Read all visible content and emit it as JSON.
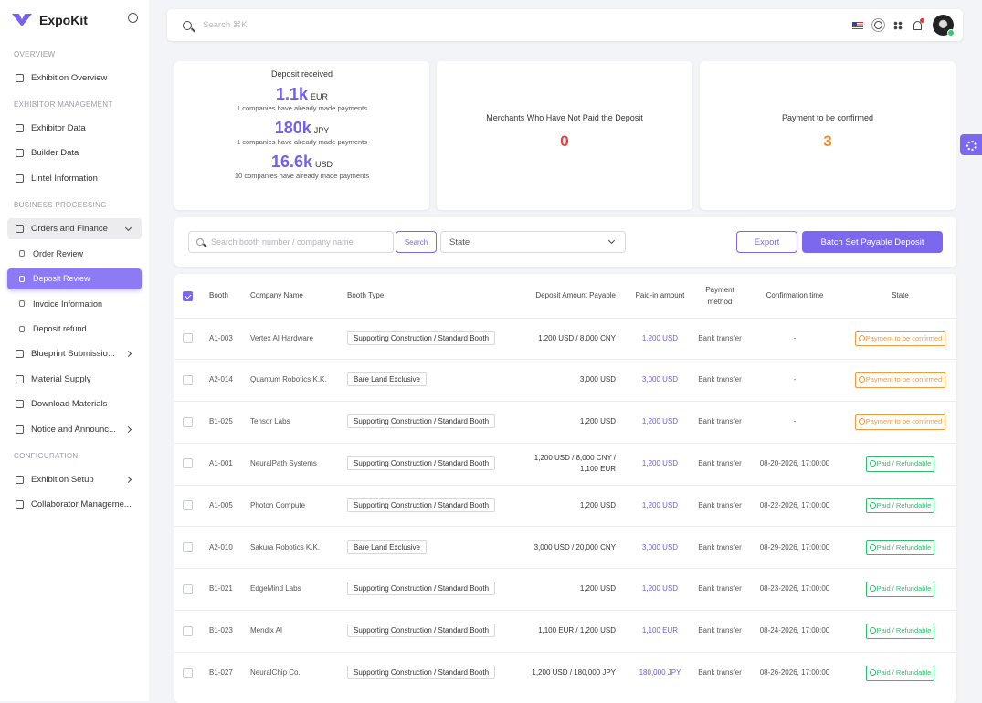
{
  "sidebar": {
    "brand": "ExpoKit",
    "sections": [
      {
        "title": "OVERVIEW",
        "items": [
          {
            "label": "Exhibition Overview"
          }
        ]
      },
      {
        "title": "EXHIBITOR MANAGEMENT",
        "items": [
          {
            "label": "Exhibitor Data"
          },
          {
            "label": "Builder Data"
          },
          {
            "label": "Lintel Information"
          }
        ]
      },
      {
        "title": "BUSINESS PROCESSING",
        "items": [
          {
            "label": "Orders and Finance",
            "expanded": true,
            "children": [
              {
                "label": "Order Review"
              },
              {
                "label": "Deposit Review",
                "active": true
              },
              {
                "label": "Invoice Information"
              },
              {
                "label": "Deposit refund"
              }
            ]
          },
          {
            "label": "Blueprint Submissio...",
            "has_submenu": true
          },
          {
            "label": "Material Supply"
          },
          {
            "label": "Download Materials"
          },
          {
            "label": "Notice and Announc...",
            "has_submenu": true
          }
        ]
      },
      {
        "title": "CONFIGURATION",
        "items": [
          {
            "label": "Exhibition Setup",
            "has_submenu": true
          },
          {
            "label": "Collaborator Manageme..."
          }
        ]
      }
    ]
  },
  "topbar": {
    "search_placeholder": "Search ⌘K"
  },
  "summary": {
    "deposit_received": {
      "title": "Deposit received",
      "entries": [
        {
          "amount": "1.1k",
          "unit": "EUR",
          "note": "1 companies have already made payments"
        },
        {
          "amount": "180k",
          "unit": "JPY",
          "note": "1 companies have already made payments"
        },
        {
          "amount": "16.6k",
          "unit": "USD",
          "note": "10 companies have already made payments"
        }
      ]
    },
    "unpaid": {
      "title": "Merchants Who Have Not Paid the Deposit",
      "value": 0,
      "color": "#e5403a"
    },
    "to_confirm": {
      "title": "Payment to be confirmed",
      "value": 3,
      "color": "#f28c28"
    }
  },
  "toolbar": {
    "search_placeholder": "Search booth number / company name",
    "search_button": "Search",
    "state_placeholder": "State",
    "export": "Export",
    "batch": "Batch Set Payable Deposit"
  },
  "table": {
    "header_checked": true,
    "columns": [
      "Booth",
      "Company Name",
      "Booth Type",
      "Deposit Amount Payable",
      "Paid-in amount",
      "Payment method",
      "Confirmation time",
      "State"
    ],
    "rows": [
      {
        "booth": "A1-003",
        "company": "Vertex AI Hardware",
        "booth_type": "Supporting Construction / Standard Booth",
        "deposit": "1,200 USD / 8,000 CNY",
        "paid": "1,200 USD",
        "method": "Bank transfer",
        "confirmed_at": "-",
        "state": "Payment to be confirmed",
        "state_tone": "warning"
      },
      {
        "booth": "A2-014",
        "company": "Quantum Robotics K.K.",
        "booth_type": "Bare Land Exclusive",
        "deposit": "3,000 USD",
        "paid": "3,000 USD",
        "method": "Bank transfer",
        "confirmed_at": "-",
        "state": "Payment to be confirmed",
        "state_tone": "warning"
      },
      {
        "booth": "B1-025",
        "company": "Tensor Labs",
        "booth_type": "Supporting Construction / Standard Booth",
        "deposit": "1,200 USD",
        "paid": "1,200 USD",
        "method": "Bank transfer",
        "confirmed_at": "-",
        "state": "Payment to be confirmed",
        "state_tone": "warning"
      },
      {
        "booth": "A1-001",
        "company": "NeuralPath Systems",
        "booth_type": "Supporting Construction / Standard Booth",
        "deposit": "1,200 USD / 8,000 CNY / 1,100 EUR",
        "paid": "1,200 USD",
        "method": "Bank transfer",
        "confirmed_at": "08-20-2026, 17:00:00",
        "state": "Paid / Refundable",
        "state_tone": "success"
      },
      {
        "booth": "A1-005",
        "company": "Photon Compute",
        "booth_type": "Supporting Construction / Standard Booth",
        "deposit": "1,200 USD",
        "paid": "1,200 USD",
        "method": "Bank transfer",
        "confirmed_at": "08-22-2026, 17:00:00",
        "state": "Paid / Refundable",
        "state_tone": "success"
      },
      {
        "booth": "A2-010",
        "company": "Sakura Robotics K.K.",
        "booth_type": "Bare Land Exclusive",
        "deposit": "3,000 USD / 20,000 CNY",
        "paid": "3,000 USD",
        "method": "Bank transfer",
        "confirmed_at": "08-29-2026, 17:00:00",
        "state": "Paid / Refundable",
        "state_tone": "success"
      },
      {
        "booth": "B1-021",
        "company": "EdgeMind Labs",
        "booth_type": "Supporting Construction / Standard Booth",
        "deposit": "1,200 USD",
        "paid": "1,200 USD",
        "method": "Bank transfer",
        "confirmed_at": "08-23-2026, 17:00:00",
        "state": "Paid / Refundable",
        "state_tone": "success"
      },
      {
        "booth": "B1-023",
        "company": "Mendix AI",
        "booth_type": "Supporting Construction / Standard Booth",
        "deposit": "1,100 EUR / 1,200 USD",
        "paid": "1,100 EUR",
        "method": "Bank transfer",
        "confirmed_at": "08-24-2026, 17:00:00",
        "state": "Paid / Refundable",
        "state_tone": "success"
      },
      {
        "booth": "B1-027",
        "company": "NeuralChip Co.",
        "booth_type": "Supporting Construction / Standard Booth",
        "deposit": "1,200 USD / 180,000 JPY",
        "paid": "180,000 JPY",
        "method": "Bank transfer",
        "confirmed_at": "08-26-2026, 17:00:00",
        "state": "Paid / Refundable",
        "state_tone": "success"
      }
    ]
  }
}
